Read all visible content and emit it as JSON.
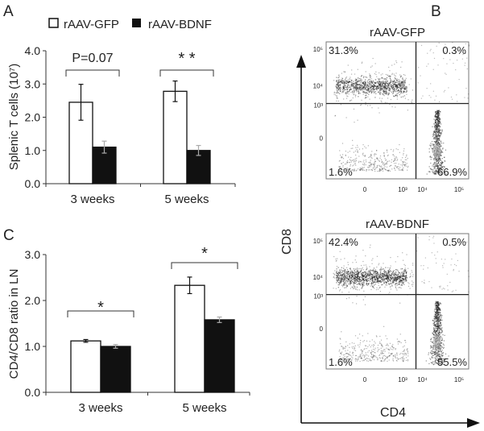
{
  "panel_labels": {
    "a": "A",
    "b": "B",
    "c": "C"
  },
  "legend": {
    "series1": "rAAV-GFP",
    "series2": "rAAV-BDNF",
    "color1": "#ffffff",
    "color2": "#111111"
  },
  "chart_data": [
    {
      "type": "bar",
      "panel": "A",
      "ylabel": "Splenic T cells (10⁷)",
      "ylim": [
        0,
        4
      ],
      "yticks": [
        "0.0",
        "1.0",
        "2.0",
        "3.0",
        "4.0"
      ],
      "categories": [
        "3 weeks",
        "5 weeks"
      ],
      "series": [
        {
          "name": "rAAV-GFP",
          "values": [
            2.45,
            2.78
          ],
          "errors": [
            0.54,
            0.31
          ]
        },
        {
          "name": "rAAV-BDNF",
          "values": [
            1.1,
            1.0
          ],
          "errors": [
            0.18,
            0.15
          ]
        }
      ],
      "annotations": [
        "P=0.07",
        "* *"
      ]
    },
    {
      "type": "bar",
      "panel": "C",
      "ylabel": "CD4/CD8 ratio in LN",
      "ylim": [
        0,
        3
      ],
      "yticks": [
        "0.0",
        "1.0",
        "2.0",
        "3.0"
      ],
      "categories": [
        "3 weeks",
        "5 weeks"
      ],
      "series": [
        {
          "name": "rAAV-GFP",
          "values": [
            1.12,
            2.33
          ],
          "errors": [
            0.03,
            0.18
          ]
        },
        {
          "name": "rAAV-BDNF",
          "values": [
            1.0,
            1.58
          ],
          "errors": [
            0.04,
            0.06
          ]
        }
      ],
      "annotations": [
        "*",
        "*"
      ]
    },
    {
      "type": "scatter",
      "panel": "B",
      "xlabel": "CD4",
      "ylabel": "CD8",
      "axis_ticks": [
        "0",
        "10³",
        "10⁴",
        "10⁵"
      ],
      "plots": [
        {
          "title": "rAAV-GFP",
          "quadrants": {
            "upper_left": "31.3%",
            "upper_right": "0.3%",
            "lower_left": "1.6%",
            "lower_right": "66.9%"
          }
        },
        {
          "title": "rAAV-BDNF",
          "quadrants": {
            "upper_left": "42.4%",
            "upper_right": "0.5%",
            "lower_left": "1.6%",
            "lower_right": "55.5%"
          }
        }
      ]
    }
  ]
}
